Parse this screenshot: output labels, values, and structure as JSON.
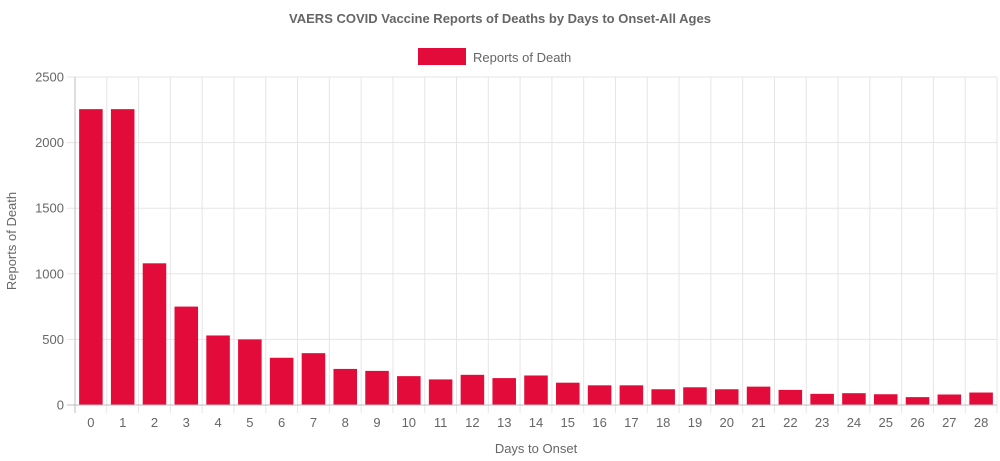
{
  "chart_data": {
    "type": "bar",
    "title": "VAERS COVID Vaccine Reports of Deaths by Days to Onset-All Ages",
    "xlabel": "Days to Onset",
    "ylabel": "Reports of Death",
    "ylim": [
      0,
      2500
    ],
    "yticks": [
      0,
      500,
      1000,
      1500,
      2000,
      2500
    ],
    "grid": true,
    "legend_position": "top-center",
    "categories": [
      "0",
      "1",
      "2",
      "3",
      "4",
      "5",
      "6",
      "7",
      "8",
      "9",
      "10",
      "11",
      "12",
      "13",
      "14",
      "15",
      "16",
      "17",
      "18",
      "19",
      "20",
      "21",
      "22",
      "23",
      "24",
      "25",
      "26",
      "27",
      "28"
    ],
    "series": [
      {
        "name": "Reports of Death",
        "color": "#e20b3a",
        "values": [
          2255,
          2255,
          1080,
          750,
          530,
          500,
          360,
          395,
          275,
          260,
          220,
          195,
          230,
          205,
          225,
          170,
          150,
          150,
          120,
          135,
          120,
          140,
          115,
          85,
          90,
          82,
          60,
          80,
          95
        ]
      }
    ]
  }
}
